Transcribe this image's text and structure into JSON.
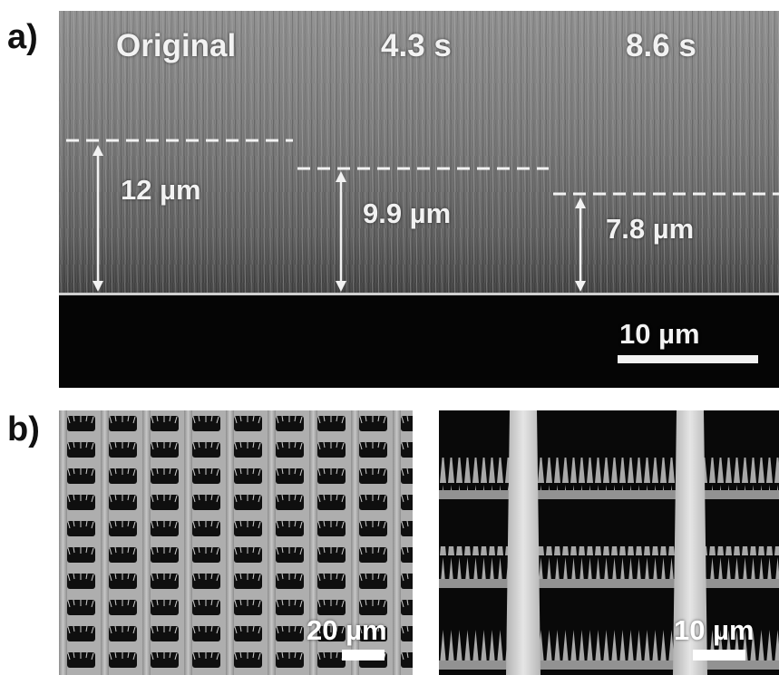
{
  "panel_a": {
    "letter": "a)",
    "column_labels": [
      "Original",
      "4.3 s",
      "8.6 s"
    ],
    "heights": [
      "12 µm",
      "9.9 µm",
      "7.8 µm"
    ],
    "scale_bar": "10 µm"
  },
  "panel_b": {
    "letter": "b)",
    "left_scale_bar": "20 µm",
    "right_scale_bar": "10 µm"
  },
  "colors": {
    "annotation": "#f2f2f2",
    "substrate": "#050505",
    "forest_top": "#8a8a8a",
    "forest_bottom": "#5a5a5a"
  }
}
